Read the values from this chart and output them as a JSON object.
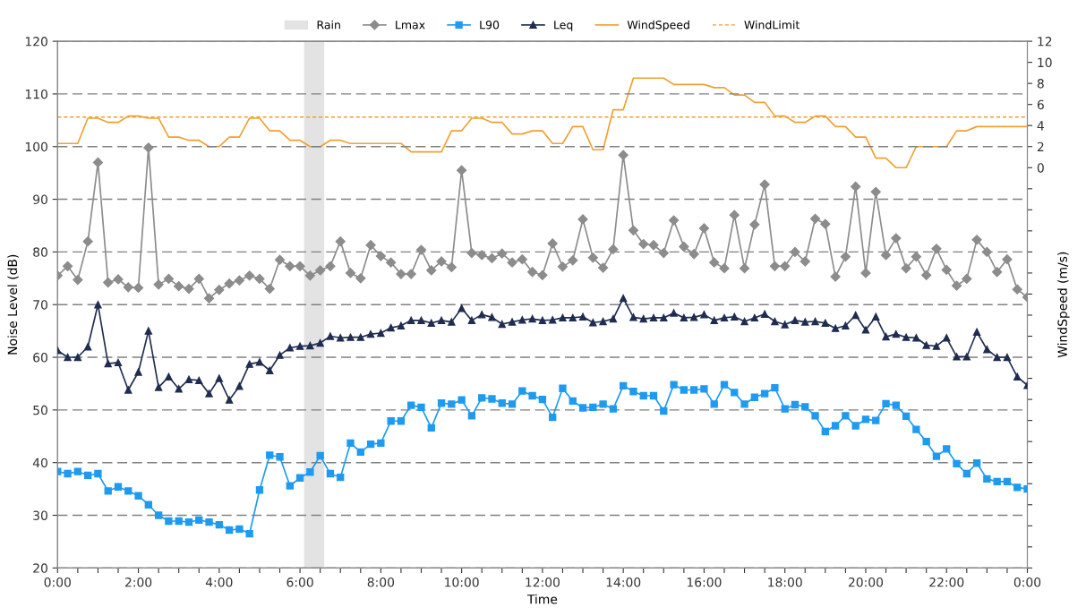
{
  "chart_data": {
    "type": "line",
    "xlabel": "Time",
    "ylabel": "Noise Level (dB)",
    "y2label": "WindSpeed (m/s)",
    "x": [
      0,
      0.25,
      0.5,
      0.75,
      1,
      1.25,
      1.5,
      1.75,
      2,
      2.25,
      2.5,
      2.75,
      3,
      3.25,
      3.5,
      3.75,
      4,
      4.25,
      4.5,
      4.75,
      5,
      5.25,
      5.5,
      5.75,
      6,
      6.25,
      6.5,
      6.75,
      7,
      7.25,
      7.5,
      7.75,
      8,
      8.25,
      8.5,
      8.75,
      9,
      9.25,
      9.5,
      9.75,
      10,
      10.25,
      10.5,
      10.75,
      11,
      11.25,
      11.5,
      11.75,
      12,
      12.25,
      12.5,
      12.75,
      13,
      13.25,
      13.5,
      13.75,
      14,
      14.25,
      14.5,
      14.75,
      15,
      15.25,
      15.5,
      15.75,
      16,
      16.25,
      16.5,
      16.75,
      17,
      17.25,
      17.5,
      17.75,
      18,
      18.25,
      18.5,
      18.75,
      19,
      19.25,
      19.5,
      19.75,
      20,
      20.25,
      20.5,
      20.75,
      21,
      21.25,
      21.5,
      21.75,
      22,
      22.25,
      22.5,
      22.75,
      23,
      23.25,
      23.5,
      23.75,
      24
    ],
    "series": [
      {
        "name": "Lmax",
        "color": "#8c8c8c",
        "marker": "diamond",
        "values": [
          75.5,
          77.3,
          74.7,
          82,
          97,
          74.2,
          74.8,
          73.3,
          73.2,
          99.8,
          73.8,
          74.9,
          73.5,
          73.0,
          74.9,
          71.2,
          72.8,
          74.0,
          74.6,
          75.5,
          74.9,
          73.0,
          78.5,
          77.3,
          77.3,
          75.5,
          76.5,
          77.3,
          82,
          76,
          75,
          81.3,
          79.2,
          78,
          75.8,
          75.8,
          80.4,
          76.5,
          78.2,
          77.1,
          95.5,
          79.8,
          79.4,
          78.8,
          79.7,
          78.0,
          78.6,
          76.2,
          75.6,
          81.6,
          77.2,
          78.4,
          86.2,
          78.9,
          77.0,
          80.5,
          98.4,
          84.1,
          81.5,
          81.3,
          79.8,
          86.0,
          81.0,
          79.6,
          84.5,
          78.0,
          76.9,
          87.0,
          76.9,
          85.2,
          92.8,
          77.3,
          77.3,
          80,
          78.2,
          86.3,
          85.3,
          75.3,
          79.1,
          92.4,
          76,
          91.4,
          79.4,
          82.6,
          76.9,
          79.1,
          75.6,
          80.6,
          76.6,
          73.6,
          74.9,
          82.3,
          80.0,
          76.2,
          78.6,
          72.9,
          71.4
        ]
      },
      {
        "name": "L90",
        "color": "#1e9bf0",
        "marker": "square",
        "values": [
          38.3,
          37.9,
          38.3,
          37.6,
          37.9,
          34.6,
          35.4,
          34.6,
          33.7,
          32,
          30,
          28.9,
          28.9,
          28.7,
          29.1,
          28.7,
          28.2,
          27.2,
          27.4,
          26.5,
          34.8,
          41.4,
          41.1,
          35.6,
          37.1,
          38.2,
          41.3,
          37.9,
          37.2,
          43.7,
          42,
          43.5,
          43.7,
          47.9,
          47.9,
          50.9,
          50.5,
          46.6,
          51.3,
          51.1,
          51.9,
          48.9,
          52.3,
          52.1,
          51.3,
          51.1,
          53.6,
          52.7,
          52,
          48.6,
          54.1,
          51.7,
          50.4,
          50.5,
          51.1,
          50.2,
          54.6,
          53.5,
          52.7,
          52.7,
          49.8,
          54.8,
          53.8,
          53.8,
          54,
          51.1,
          54.8,
          53.3,
          51.1,
          52.4,
          53.1,
          54.2,
          50.2,
          51,
          50.6,
          48.9,
          45.9,
          47,
          48.9,
          47,
          48.2,
          48,
          51.2,
          50.9,
          48.8,
          46.3,
          44,
          41.2,
          42.6,
          39.8,
          37.9,
          39.9,
          36.9,
          36.4,
          36.4,
          35.3,
          35
        ]
      },
      {
        "name": "Leq",
        "color": "#1f2d50",
        "marker": "triangle",
        "values": [
          61.3,
          60,
          60,
          62,
          70,
          58.8,
          59,
          53.8,
          57.2,
          65,
          54.3,
          56.3,
          54,
          55.8,
          55.6,
          53.1,
          56,
          51.9,
          54.5,
          58.7,
          59.1,
          57.5,
          60.4,
          61.8,
          62.1,
          62.2,
          62.7,
          64,
          63.7,
          63.8,
          63.8,
          64.4,
          64.6,
          65.6,
          66,
          67,
          67,
          66.5,
          67,
          66.7,
          69.3,
          67,
          68.1,
          67.6,
          66.3,
          66.7,
          67.1,
          67.3,
          67,
          67.1,
          67.5,
          67.5,
          67.7,
          66.6,
          66.8,
          67.3,
          71.2,
          67.6,
          67.3,
          67.5,
          67.5,
          68.4,
          67.5,
          67.6,
          68.1,
          67,
          67.5,
          67.7,
          66.8,
          67.5,
          68.2,
          66.8,
          66.2,
          67,
          66.7,
          66.8,
          66.5,
          65.5,
          66,
          68,
          65.2,
          67.7,
          63.9,
          64.4,
          63.8,
          63.7,
          62.3,
          62.1,
          63.7,
          60.1,
          60.1,
          64.8,
          61.5,
          60,
          60,
          56.3,
          54.7
        ]
      },
      {
        "name": "WindSpeed",
        "color": "#f0a030",
        "marker": "none",
        "axis": "y2",
        "values": [
          2.3,
          2.3,
          2.3,
          4.7,
          4.7,
          4.3,
          4.3,
          4.9,
          4.9,
          4.7,
          4.7,
          2.9,
          2.9,
          2.6,
          2.6,
          2.0,
          2.0,
          2.9,
          2.9,
          4.7,
          4.7,
          3.5,
          3.5,
          2.6,
          2.6,
          2.0,
          2.0,
          2.6,
          2.6,
          2.3,
          2.3,
          2.3,
          2.3,
          2.3,
          2.3,
          1.5,
          1.5,
          1.5,
          1.5,
          3.5,
          3.5,
          4.7,
          4.7,
          4.3,
          4.3,
          3.2,
          3.2,
          3.5,
          3.5,
          2.3,
          2.3,
          3.9,
          3.9,
          1.7,
          1.7,
          5.5,
          5.5,
          8.5,
          8.5,
          8.5,
          8.5,
          7.9,
          7.9,
          7.9,
          7.9,
          7.6,
          7.6,
          6.9,
          6.9,
          6.2,
          6.2,
          4.9,
          4.9,
          4.3,
          4.3,
          4.9,
          4.9,
          3.9,
          3.9,
          2.9,
          2.9,
          0.9,
          0.9,
          0.0,
          0.0,
          2.0,
          2.0,
          2.0,
          2.0,
          3.5,
          3.5,
          3.9,
          3.9,
          3.9,
          3.9,
          3.9,
          3.9
        ]
      }
    ],
    "ref_lines": [
      {
        "axis": "y2",
        "value": 4.8,
        "label": "WindLimit",
        "color": "#f0a030",
        "line_style": "dashed"
      }
    ],
    "bands": [
      {
        "axis": "x",
        "from": 6.1,
        "to": 6.6,
        "label": "Rain",
        "color": "#e3e3e3"
      }
    ],
    "xlim": [
      0,
      24
    ],
    "xticks": [
      {
        "value": 0,
        "label": "0:00"
      },
      {
        "value": 0.5,
        "label": null
      },
      {
        "value": 1,
        "label": null
      },
      {
        "value": 1.5,
        "label": null
      },
      {
        "value": 2,
        "label": "2:00"
      },
      {
        "value": 2.5,
        "label": null
      },
      {
        "value": 3,
        "label": null
      },
      {
        "value": 3.5,
        "label": null
      },
      {
        "value": 4,
        "label": "4:00"
      },
      {
        "value": 4.5,
        "label": null
      },
      {
        "value": 5,
        "label": null
      },
      {
        "value": 5.5,
        "label": null
      },
      {
        "value": 6,
        "label": "6:00"
      },
      {
        "value": 6.5,
        "label": null
      },
      {
        "value": 7,
        "label": null
      },
      {
        "value": 7.5,
        "label": null
      },
      {
        "value": 8,
        "label": "8:00"
      },
      {
        "value": 8.5,
        "label": null
      },
      {
        "value": 9,
        "label": null
      },
      {
        "value": 9.5,
        "label": null
      },
      {
        "value": 10,
        "label": "10:00"
      },
      {
        "value": 10.5,
        "label": null
      },
      {
        "value": 11,
        "label": null
      },
      {
        "value": 11.5,
        "label": null
      },
      {
        "value": 12,
        "label": "12:00"
      },
      {
        "value": 12.5,
        "label": null
      },
      {
        "value": 13,
        "label": null
      },
      {
        "value": 13.5,
        "label": null
      },
      {
        "value": 14,
        "label": "14:00"
      },
      {
        "value": 14.5,
        "label": null
      },
      {
        "value": 15,
        "label": null
      },
      {
        "value": 15.5,
        "label": null
      },
      {
        "value": 16,
        "label": "16:00"
      },
      {
        "value": 16.5,
        "label": null
      },
      {
        "value": 17,
        "label": null
      },
      {
        "value": 17.5,
        "label": null
      },
      {
        "value": 18,
        "label": "18:00"
      },
      {
        "value": 18.5,
        "label": null
      },
      {
        "value": 19,
        "label": null
      },
      {
        "value": 19.5,
        "label": null
      },
      {
        "value": 20,
        "label": "20:00"
      },
      {
        "value": 20.5,
        "label": null
      },
      {
        "value": 21,
        "label": null
      },
      {
        "value": 21.5,
        "label": null
      },
      {
        "value": 22,
        "label": "22:00"
      },
      {
        "value": 22.5,
        "label": null
      },
      {
        "value": 23,
        "label": null
      },
      {
        "value": 23.5,
        "label": null
      },
      {
        "value": 24,
        "label": "0:00"
      }
    ],
    "ylim": [
      20,
      120
    ],
    "yticks": [
      20,
      30,
      40,
      50,
      60,
      70,
      80,
      90,
      100,
      110,
      120
    ],
    "y2lim": [
      -38,
      12
    ],
    "y2ticks": [
      {
        "value": -38,
        "label": null
      },
      {
        "value": -36,
        "label": null
      },
      {
        "value": -34,
        "label": null
      },
      {
        "value": -32,
        "label": null
      },
      {
        "value": -30,
        "label": null
      },
      {
        "value": -28,
        "label": null
      },
      {
        "value": -26,
        "label": null
      },
      {
        "value": -24,
        "label": null
      },
      {
        "value": -22,
        "label": null
      },
      {
        "value": -20,
        "label": null
      },
      {
        "value": -18,
        "label": null
      },
      {
        "value": -16,
        "label": null
      },
      {
        "value": -14,
        "label": null
      },
      {
        "value": -12,
        "label": null
      },
      {
        "value": -10,
        "label": null
      },
      {
        "value": -8,
        "label": null
      },
      {
        "value": -6,
        "label": null
      },
      {
        "value": -4,
        "label": null
      },
      {
        "value": -2,
        "label": null
      },
      0,
      2,
      4,
      6,
      8,
      10,
      12
    ],
    "grid": "y",
    "legend": "top"
  }
}
